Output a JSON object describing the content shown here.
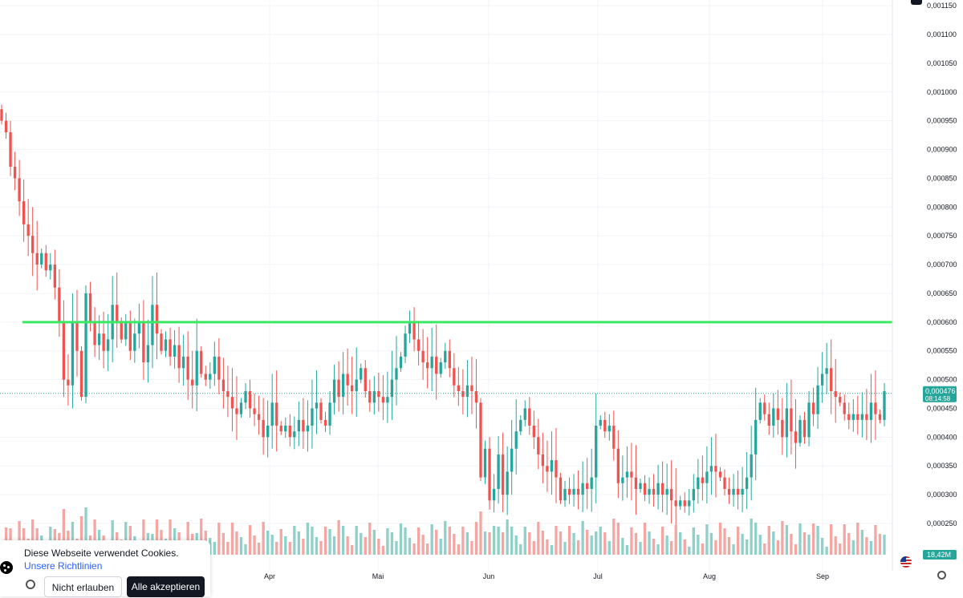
{
  "chart_data": {
    "type": "candlestick",
    "price_axis": {
      "min": 0.00021,
      "max": 0.00116,
      "ticks": [
        "0,001150",
        "0,001100",
        "0,001050",
        "0,001000",
        "0,000950",
        "0,000900",
        "0,000850",
        "0,000800",
        "0,000750",
        "0,000700",
        "0,000650",
        "0,000600",
        "0,000550",
        "0,000500",
        "0,000450",
        "0,000400",
        "0,000350",
        "0,000300",
        "0,000250"
      ]
    },
    "time_axis": {
      "labels": [
        "Apr",
        "Mai",
        "Jun",
        "Jul",
        "Aug",
        "Sep"
      ]
    },
    "current_price": {
      "value": 0.000476,
      "label": "0,000476",
      "countdown": "08:14:58"
    },
    "volume_label": "18,42M",
    "horizontal_line": {
      "value": 0.0006
    },
    "candles": [
      [
        0.00097,
        0.00095
      ],
      [
        0.00095,
        0.00093
      ],
      [
        0.00093,
        0.00087
      ],
      [
        0.00087,
        0.00085
      ],
      [
        0.00085,
        0.00081
      ],
      [
        0.00081,
        0.00077
      ],
      [
        0.00077,
        0.00075
      ],
      [
        0.00075,
        0.00072
      ],
      [
        0.00072,
        0.0007
      ],
      [
        0.0007,
        0.00072
      ],
      [
        0.00072,
        0.00069
      ],
      [
        0.00069,
        0.0007
      ],
      [
        0.0007,
        0.00066
      ],
      [
        0.00066,
        0.0006
      ],
      [
        0.0006,
        0.0005
      ],
      [
        0.0005,
        0.00049
      ],
      [
        0.00049,
        0.0006
      ],
      [
        0.0006,
        0.00055
      ],
      [
        0.00055,
        0.00047
      ],
      [
        0.00047,
        0.00065
      ],
      [
        0.00065,
        0.0006
      ],
      [
        0.0006,
        0.00056
      ],
      [
        0.00056,
        0.00058
      ],
      [
        0.00058,
        0.00055
      ],
      [
        0.00055,
        0.00057
      ],
      [
        0.00057,
        0.00063
      ],
      [
        0.00063,
        0.0006
      ],
      [
        0.0006,
        0.00057
      ],
      [
        0.00057,
        0.0006
      ],
      [
        0.0006,
        0.00055
      ],
      [
        0.00055,
        0.00058
      ],
      [
        0.00058,
        0.0006
      ],
      [
        0.0006,
        0.00053
      ],
      [
        0.00053,
        0.00056
      ],
      [
        0.00056,
        0.00063
      ],
      [
        0.00063,
        0.00058
      ],
      [
        0.00058,
        0.00055
      ],
      [
        0.00055,
        0.00057
      ],
      [
        0.00057,
        0.00054
      ],
      [
        0.00054,
        0.00056
      ],
      [
        0.00056,
        0.00052
      ],
      [
        0.00052,
        0.00054
      ],
      [
        0.00054,
        0.0005
      ],
      [
        0.0005,
        0.00049
      ],
      [
        0.00049,
        0.00055
      ],
      [
        0.00055,
        0.00051
      ],
      [
        0.00051,
        0.0005
      ],
      [
        0.0005,
        0.00051
      ],
      [
        0.00051,
        0.00054
      ],
      [
        0.00054,
        0.0005
      ],
      [
        0.0005,
        0.00048
      ],
      [
        0.00048,
        0.00047
      ],
      [
        0.00047,
        0.00045
      ],
      [
        0.00045,
        0.00044
      ],
      [
        0.00044,
        0.00046
      ],
      [
        0.00046,
        0.00048
      ],
      [
        0.00048,
        0.00045
      ],
      [
        0.00045,
        0.00044
      ],
      [
        0.00044,
        0.00043
      ],
      [
        0.00043,
        0.0004
      ],
      [
        0.0004,
        0.00042
      ],
      [
        0.00042,
        0.00046
      ],
      [
        0.00046,
        0.00042
      ],
      [
        0.00042,
        0.00041
      ],
      [
        0.00041,
        0.00042
      ],
      [
        0.00042,
        0.0004
      ],
      [
        0.0004,
        0.00041
      ],
      [
        0.00041,
        0.00043
      ],
      [
        0.00043,
        0.00041
      ],
      [
        0.00041,
        0.00042
      ],
      [
        0.00042,
        0.00045
      ],
      [
        0.00045,
        0.00046
      ],
      [
        0.00046,
        0.00043
      ],
      [
        0.00043,
        0.00042
      ],
      [
        0.00042,
        0.00046
      ],
      [
        0.00046,
        0.0005
      ],
      [
        0.0005,
        0.00047
      ],
      [
        0.00047,
        0.00051
      ],
      [
        0.00051,
        0.00049
      ],
      [
        0.00049,
        0.00048
      ],
      [
        0.00048,
        0.0005
      ],
      [
        0.0005,
        0.00052
      ],
      [
        0.00052,
        0.00048
      ],
      [
        0.00048,
        0.00046
      ],
      [
        0.00046,
        0.00048
      ],
      [
        0.00048,
        0.00047
      ],
      [
        0.00047,
        0.00046
      ],
      [
        0.00046,
        0.00047
      ],
      [
        0.00047,
        0.0005
      ],
      [
        0.0005,
        0.00052
      ],
      [
        0.00052,
        0.00054
      ],
      [
        0.00054,
        0.00058
      ],
      [
        0.00058,
        0.0006
      ],
      [
        0.0006,
        0.00057
      ],
      [
        0.00057,
        0.00055
      ],
      [
        0.00055,
        0.00053
      ],
      [
        0.00053,
        0.00052
      ],
      [
        0.00052,
        0.00054
      ],
      [
        0.00054,
        0.00051
      ],
      [
        0.00051,
        0.00053
      ],
      [
        0.00053,
        0.00055
      ],
      [
        0.00055,
        0.00052
      ],
      [
        0.00052,
        0.00049
      ],
      [
        0.00049,
        0.00048
      ],
      [
        0.00048,
        0.00047
      ],
      [
        0.00047,
        0.00049
      ],
      [
        0.00049,
        0.00048
      ],
      [
        0.00048,
        0.00046
      ],
      [
        0.00046,
        0.00033
      ],
      [
        0.00033,
        0.00038
      ],
      [
        0.00038,
        0.00029
      ],
      [
        0.00029,
        0.00031
      ],
      [
        0.00031,
        0.00037
      ],
      [
        0.00037,
        0.0003
      ],
      [
        0.0003,
        0.00034
      ],
      [
        0.00034,
        0.00038
      ],
      [
        0.00038,
        0.00041
      ],
      [
        0.00041,
        0.00043
      ],
      [
        0.00043,
        0.00045
      ],
      [
        0.00045,
        0.00042
      ],
      [
        0.00042,
        0.0004
      ],
      [
        0.0004,
        0.00037
      ],
      [
        0.00037,
        0.00035
      ],
      [
        0.00035,
        0.00034
      ],
      [
        0.00034,
        0.00036
      ],
      [
        0.00036,
        0.00033
      ],
      [
        0.00033,
        0.00029
      ],
      [
        0.00029,
        0.00031
      ],
      [
        0.00031,
        0.0003
      ],
      [
        0.0003,
        0.00031
      ],
      [
        0.00031,
        0.0003
      ],
      [
        0.0003,
        0.00032
      ],
      [
        0.00032,
        0.00031
      ],
      [
        0.00031,
        0.00033
      ],
      [
        0.00033,
        0.00042
      ],
      [
        0.00042,
        0.00043
      ],
      [
        0.00043,
        0.00041
      ],
      [
        0.00041,
        0.00042
      ],
      [
        0.00042,
        0.00038
      ],
      [
        0.00038,
        0.00032
      ],
      [
        0.00032,
        0.00033
      ],
      [
        0.00033,
        0.00034
      ],
      [
        0.00034,
        0.00033
      ],
      [
        0.00033,
        0.00031
      ],
      [
        0.00031,
        0.00032
      ],
      [
        0.00032,
        0.0003
      ],
      [
        0.0003,
        0.00031
      ],
      [
        0.00031,
        0.0003
      ],
      [
        0.0003,
        0.00032
      ],
      [
        0.00032,
        0.0003
      ],
      [
        0.0003,
        0.00031
      ],
      [
        0.00031,
        0.00029
      ],
      [
        0.00029,
        0.00028
      ],
      [
        0.00028,
        0.00029
      ],
      [
        0.00029,
        0.00028
      ],
      [
        0.00028,
        0.00029
      ],
      [
        0.00029,
        0.00031
      ],
      [
        0.00031,
        0.00033
      ],
      [
        0.00033,
        0.00032
      ],
      [
        0.00032,
        0.00034
      ],
      [
        0.00034,
        0.00035
      ],
      [
        0.00035,
        0.00034
      ],
      [
        0.00034,
        0.00033
      ],
      [
        0.00033,
        0.00031
      ],
      [
        0.00031,
        0.0003
      ],
      [
        0.0003,
        0.00031
      ],
      [
        0.00031,
        0.0003
      ],
      [
        0.0003,
        0.00031
      ],
      [
        0.00031,
        0.00033
      ],
      [
        0.00033,
        0.00037
      ],
      [
        0.00037,
        0.00043
      ],
      [
        0.00043,
        0.00046
      ],
      [
        0.00046,
        0.00044
      ],
      [
        0.00044,
        0.00042
      ],
      [
        0.00042,
        0.00045
      ],
      [
        0.00045,
        0.00043
      ],
      [
        0.00043,
        0.0004
      ],
      [
        0.0004,
        0.00045
      ],
      [
        0.00045,
        0.00041
      ],
      [
        0.00041,
        0.00039
      ],
      [
        0.00039,
        0.00043
      ],
      [
        0.00043,
        0.0004
      ],
      [
        0.0004,
        0.00046
      ],
      [
        0.00046,
        0.00044
      ],
      [
        0.00044,
        0.00049
      ],
      [
        0.00049,
        0.00051
      ],
      [
        0.00051,
        0.00052
      ],
      [
        0.00052,
        0.00048
      ],
      [
        0.00048,
        0.00047
      ],
      [
        0.00047,
        0.00046
      ],
      [
        0.00046,
        0.00044
      ],
      [
        0.00044,
        0.00043
      ],
      [
        0.00043,
        0.00044
      ],
      [
        0.00044,
        0.00043
      ],
      [
        0.00043,
        0.00044
      ],
      [
        0.00044,
        0.00043
      ],
      [
        0.00043,
        0.00046
      ],
      [
        0.00046,
        0.00044
      ],
      [
        0.00044,
        0.00043
      ],
      [
        0.00043,
        0.00048
      ]
    ]
  },
  "cookie_banner": {
    "text": "Diese Webseite verwendet Cookies.",
    "link": "Unsere Richtlinien",
    "deny_label": "Nicht erlauben",
    "accept_label": "Alle akzeptieren"
  },
  "colors": {
    "up": "#26a69a",
    "down": "#ef5350",
    "up_volume": "#8fd0c9",
    "down_volume": "#f4a6a3",
    "level_line": "#3be861",
    "grid": "#f0f3fa",
    "axis_text": "#131722"
  },
  "icons": [
    "cookie-icon",
    "gear-icon",
    "flag-icon",
    "settings-icon"
  ]
}
